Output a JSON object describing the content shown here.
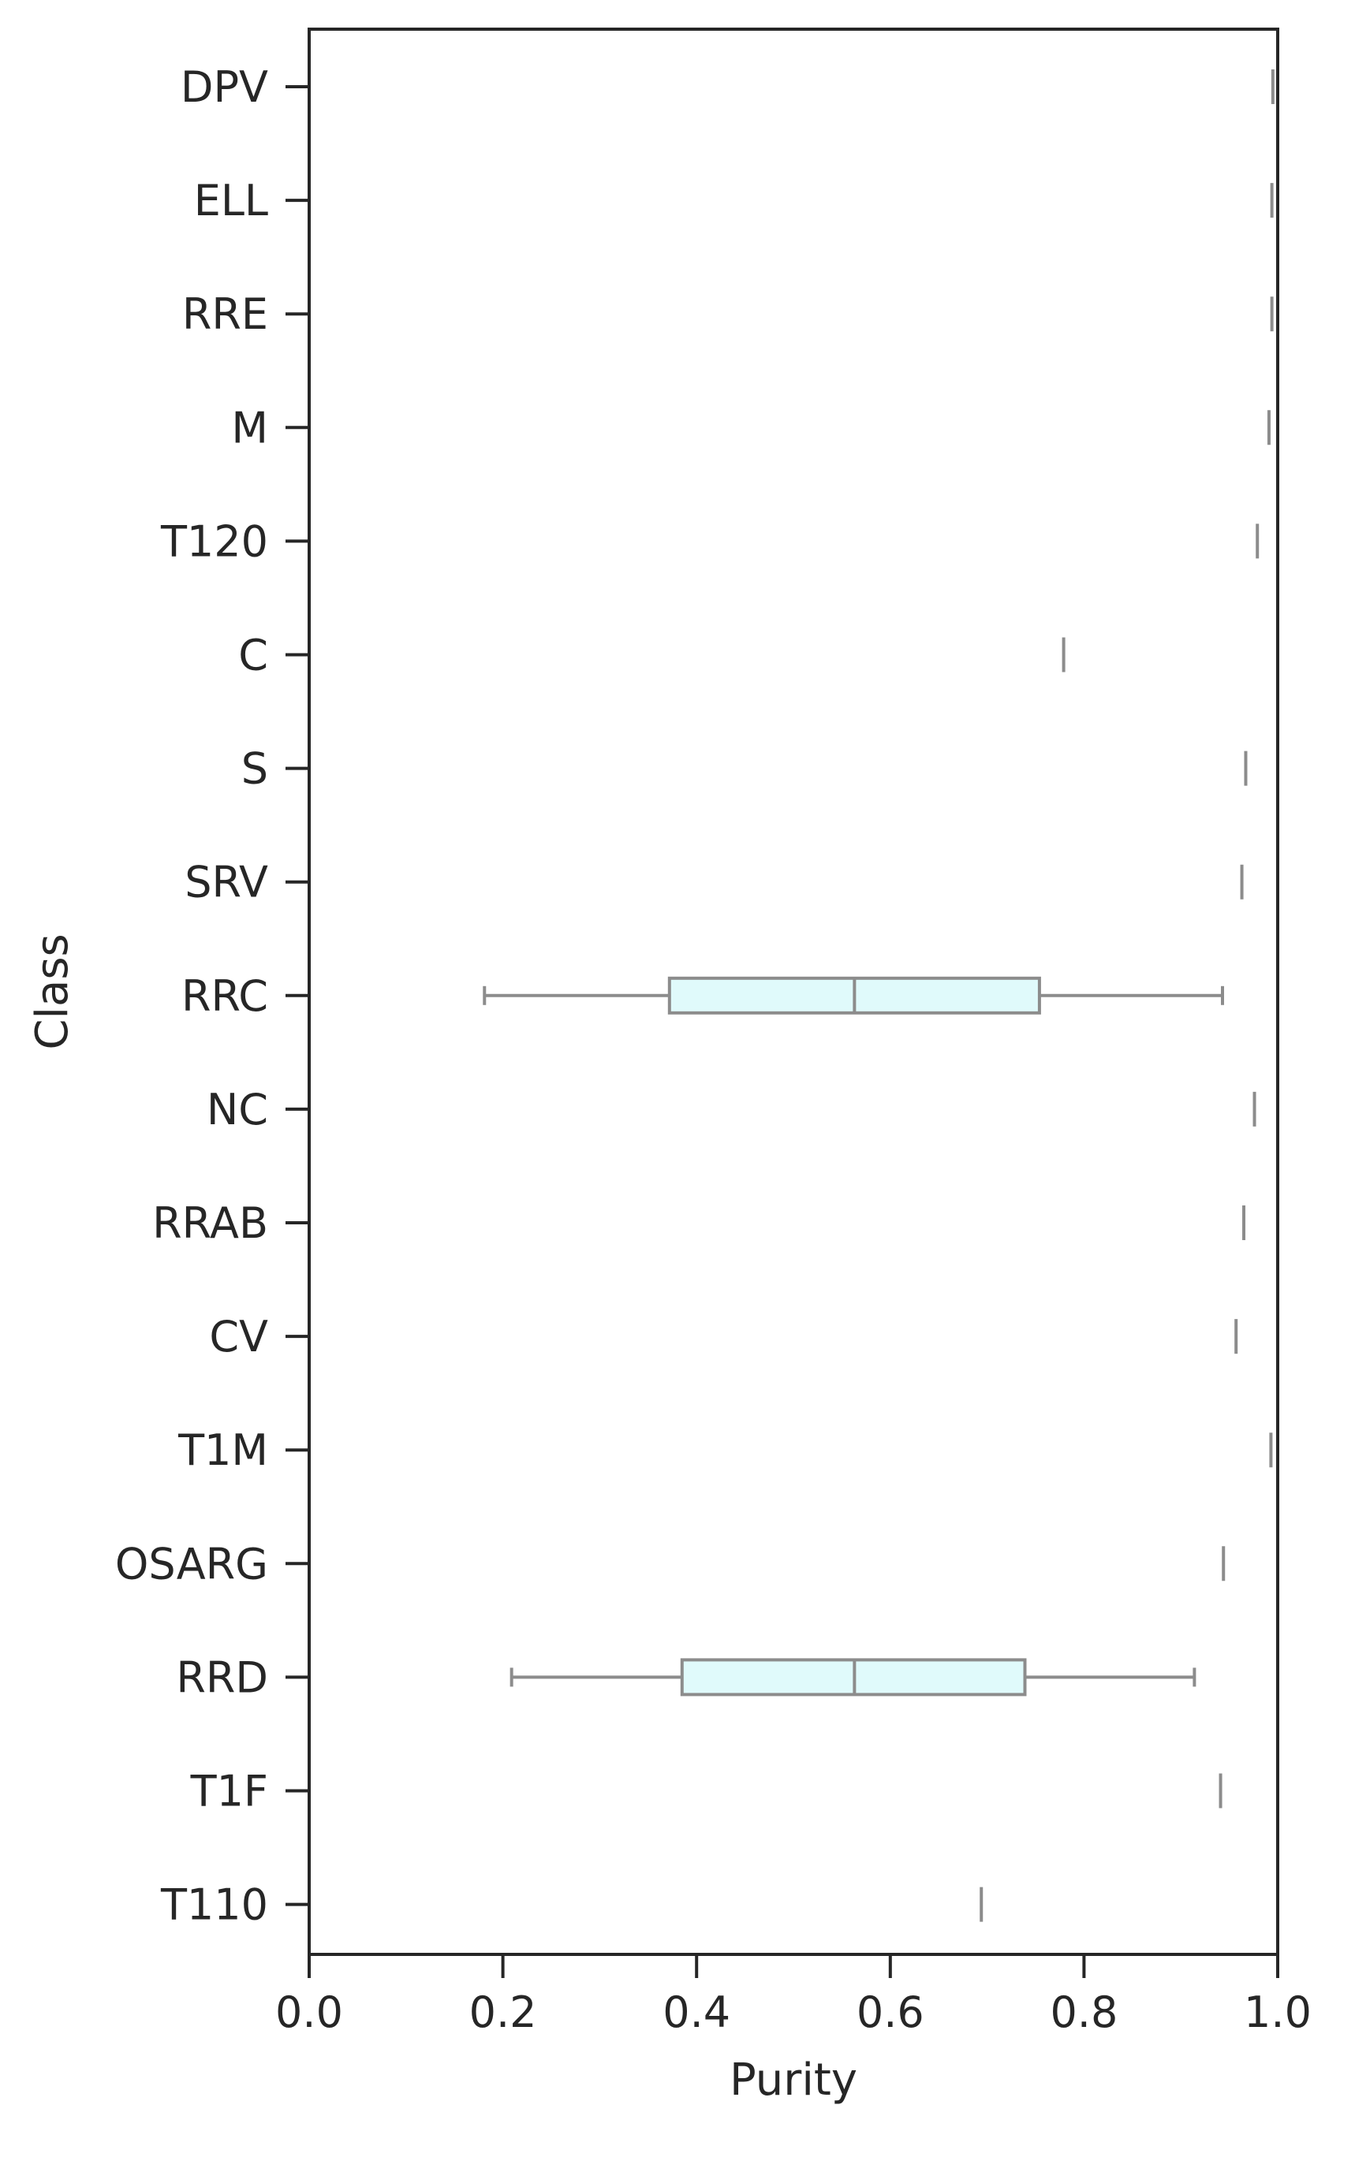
{
  "chart_data": {
    "type": "boxplot",
    "orientation": "horizontal",
    "xlabel": "Purity",
    "ylabel": "Class",
    "xlim": [
      0.0,
      1.0
    ],
    "x_ticks": [
      "0.0",
      "0.2",
      "0.4",
      "0.6",
      "0.8",
      "1.0"
    ],
    "grid": false,
    "categories": [
      "DPV",
      "ELL",
      "RRE",
      "M",
      "T120",
      "C",
      "S",
      "SRV",
      "RRC",
      "NC",
      "RRAB",
      "CV",
      "T1M",
      "OSARG",
      "RRD",
      "T1F",
      "T110"
    ],
    "boxes": [
      {
        "category": "DPV",
        "whislo": 0.995,
        "q1": 0.995,
        "med": 0.995,
        "q3": 0.995,
        "whishi": 0.995
      },
      {
        "category": "ELL",
        "whislo": 0.994,
        "q1": 0.994,
        "med": 0.994,
        "q3": 0.994,
        "whishi": 0.994
      },
      {
        "category": "RRE",
        "whislo": 0.994,
        "q1": 0.994,
        "med": 0.994,
        "q3": 0.994,
        "whishi": 0.994
      },
      {
        "category": "M",
        "whislo": 0.991,
        "q1": 0.991,
        "med": 0.991,
        "q3": 0.991,
        "whishi": 0.991
      },
      {
        "category": "T120",
        "whislo": 0.979,
        "q1": 0.979,
        "med": 0.979,
        "q3": 0.979,
        "whishi": 0.979
      },
      {
        "category": "C",
        "whislo": 0.779,
        "q1": 0.779,
        "med": 0.779,
        "q3": 0.779,
        "whishi": 0.779
      },
      {
        "category": "S",
        "whislo": 0.967,
        "q1": 0.967,
        "med": 0.967,
        "q3": 0.967,
        "whishi": 0.967
      },
      {
        "category": "SRV",
        "whislo": 0.963,
        "q1": 0.963,
        "med": 0.963,
        "q3": 0.963,
        "whishi": 0.963
      },
      {
        "category": "RRC",
        "whislo": 0.181,
        "q1": 0.372,
        "med": 0.563,
        "q3": 0.754,
        "whishi": 0.943
      },
      {
        "category": "NC",
        "whislo": 0.976,
        "q1": 0.976,
        "med": 0.976,
        "q3": 0.976,
        "whishi": 0.976
      },
      {
        "category": "RRAB",
        "whislo": 0.965,
        "q1": 0.965,
        "med": 0.965,
        "q3": 0.965,
        "whishi": 0.965
      },
      {
        "category": "CV",
        "whislo": 0.957,
        "q1": 0.957,
        "med": 0.957,
        "q3": 0.957,
        "whishi": 0.957
      },
      {
        "category": "T1M",
        "whislo": 0.993,
        "q1": 0.993,
        "med": 0.993,
        "q3": 0.993,
        "whishi": 0.993
      },
      {
        "category": "OSARG",
        "whislo": 0.944,
        "q1": 0.944,
        "med": 0.944,
        "q3": 0.944,
        "whishi": 0.944
      },
      {
        "category": "RRD",
        "whislo": 0.209,
        "q1": 0.385,
        "med": 0.563,
        "q3": 0.739,
        "whishi": 0.914
      },
      {
        "category": "T1F",
        "whislo": 0.941,
        "q1": 0.941,
        "med": 0.941,
        "q3": 0.941,
        "whishi": 0.941
      },
      {
        "category": "T110",
        "whislo": 0.694,
        "q1": 0.694,
        "med": 0.694,
        "q3": 0.694,
        "whishi": 0.694
      }
    ],
    "colors": {
      "box_fill": "#e0fafb",
      "box_edge": "#8c8c8c",
      "axis": "#262626",
      "text": "#262626"
    }
  }
}
